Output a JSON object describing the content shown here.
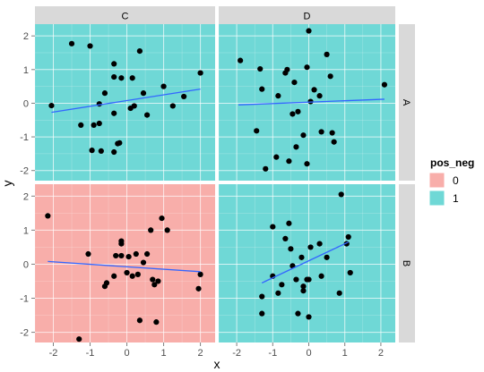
{
  "chart_data": {
    "type": "scatter",
    "xlabel": "x",
    "ylabel": "y",
    "xlim": [
      -2.5,
      2.4
    ],
    "ylim": [
      -2.3,
      2.35
    ],
    "x_ticks": [
      -2,
      -1,
      0,
      1,
      2
    ],
    "y_ticks": [
      -2,
      -1,
      0,
      1,
      2
    ],
    "x_tick_labels": [
      "-2",
      "-1",
      "0",
      "1",
      "2"
    ],
    "y_tick_labels": [
      "-2",
      "-1",
      "0",
      "1",
      "2"
    ],
    "column_facets": [
      "C",
      "D"
    ],
    "row_facets": [
      "A",
      "B"
    ],
    "grid": true,
    "legend": {
      "title": "pos_neg",
      "position": "right",
      "entries": [
        {
          "label": "0",
          "color": "#F8AEAA"
        },
        {
          "label": "1",
          "color": "#6FD8D6"
        }
      ]
    },
    "line_color": "#3366FF",
    "point_color": "#000000",
    "panels": [
      {
        "row": "A",
        "col": "C",
        "pos_neg": "1",
        "points": [
          [
            -2.05,
            -0.07
          ],
          [
            -1.5,
            1.77
          ],
          [
            -1.25,
            -0.65
          ],
          [
            -1.0,
            1.7
          ],
          [
            -0.9,
            -0.65
          ],
          [
            -0.75,
            -0.6
          ],
          [
            -0.95,
            -1.4
          ],
          [
            -0.75,
            -0.02
          ],
          [
            -0.6,
            0.3
          ],
          [
            -0.7,
            -1.42
          ],
          [
            -0.35,
            -1.45
          ],
          [
            -0.25,
            -1.2
          ],
          [
            -0.2,
            -1.18
          ],
          [
            -0.35,
            1.17
          ],
          [
            -0.35,
            0.78
          ],
          [
            -0.35,
            -0.3
          ],
          [
            -0.15,
            0.75
          ],
          [
            0.15,
            0.75
          ],
          [
            0.1,
            -0.15
          ],
          [
            0.2,
            -0.08
          ],
          [
            0.35,
            1.55
          ],
          [
            0.45,
            0.3
          ],
          [
            0.55,
            -0.35
          ],
          [
            1.0,
            0.5
          ],
          [
            1.25,
            -0.08
          ],
          [
            1.55,
            0.2
          ],
          [
            2.0,
            0.9
          ]
        ],
        "fit": [
          [
            -2.05,
            -0.27
          ],
          [
            2.0,
            0.42
          ]
        ]
      },
      {
        "row": "A",
        "col": "D",
        "pos_neg": "1",
        "points": [
          [
            -1.9,
            1.27
          ],
          [
            -1.45,
            -0.82
          ],
          [
            -1.35,
            1.02
          ],
          [
            -1.3,
            0.42
          ],
          [
            -1.2,
            -1.95
          ],
          [
            -0.9,
            -1.6
          ],
          [
            -0.85,
            0.22
          ],
          [
            -0.65,
            0.9
          ],
          [
            -0.6,
            1.0
          ],
          [
            -0.55,
            -1.72
          ],
          [
            -0.45,
            -0.32
          ],
          [
            -0.4,
            0.62
          ],
          [
            -0.35,
            -1.3
          ],
          [
            -0.3,
            -0.25
          ],
          [
            -0.15,
            -0.95
          ],
          [
            0.0,
            2.15
          ],
          [
            -0.05,
            1.07
          ],
          [
            0.05,
            0.05
          ],
          [
            0.15,
            0.4
          ],
          [
            0.3,
            0.22
          ],
          [
            0.35,
            -0.85
          ],
          [
            0.5,
            1.45
          ],
          [
            0.6,
            0.8
          ],
          [
            0.65,
            -0.88
          ],
          [
            0.7,
            -1.15
          ],
          [
            -0.05,
            -1.8
          ],
          [
            2.1,
            0.55
          ]
        ],
        "fit": [
          [
            -1.95,
            -0.05
          ],
          [
            2.1,
            0.12
          ]
        ]
      },
      {
        "row": "B",
        "col": "C",
        "pos_neg": "0",
        "points": [
          [
            -2.15,
            1.42
          ],
          [
            -1.3,
            -2.2
          ],
          [
            -1.05,
            0.3
          ],
          [
            -0.6,
            -0.65
          ],
          [
            -0.55,
            -0.55
          ],
          [
            -0.35,
            -0.35
          ],
          [
            -0.3,
            0.25
          ],
          [
            -0.15,
            0.68
          ],
          [
            -0.15,
            0.6
          ],
          [
            -0.15,
            0.25
          ],
          [
            0.0,
            -0.25
          ],
          [
            0.05,
            0.22
          ],
          [
            0.15,
            -0.35
          ],
          [
            0.25,
            0.3
          ],
          [
            0.35,
            -1.65
          ],
          [
            0.45,
            0.05
          ],
          [
            0.55,
            0.3
          ],
          [
            0.65,
            1.0
          ],
          [
            0.7,
            -0.45
          ],
          [
            0.75,
            -0.6
          ],
          [
            0.8,
            -1.7
          ],
          [
            0.85,
            -0.5
          ],
          [
            0.95,
            1.35
          ],
          [
            1.1,
            1.0
          ],
          [
            1.95,
            -0.72
          ],
          [
            2.0,
            -0.3
          ],
          [
            0.3,
            -0.3
          ]
        ],
        "fit": [
          [
            -2.15,
            0.08
          ],
          [
            2.0,
            -0.22
          ]
        ]
      },
      {
        "row": "B",
        "col": "D",
        "pos_neg": "1",
        "points": [
          [
            -1.3,
            -1.45
          ],
          [
            -1.3,
            -0.95
          ],
          [
            -1.0,
            -0.35
          ],
          [
            -1.0,
            1.1
          ],
          [
            -0.85,
            -0.85
          ],
          [
            -0.75,
            -0.6
          ],
          [
            -0.65,
            0.75
          ],
          [
            -0.55,
            1.2
          ],
          [
            -0.5,
            0.45
          ],
          [
            -0.45,
            -0.05
          ],
          [
            -0.35,
            -0.45
          ],
          [
            -0.3,
            -1.45
          ],
          [
            -0.2,
            0.2
          ],
          [
            -0.15,
            -0.65
          ],
          [
            -0.15,
            -0.78
          ],
          [
            -0.05,
            -0.45
          ],
          [
            0.0,
            -1.55
          ],
          [
            0.0,
            -0.45
          ],
          [
            0.05,
            0.5
          ],
          [
            0.3,
            0.6
          ],
          [
            0.35,
            -0.35
          ],
          [
            0.5,
            0.2
          ],
          [
            0.85,
            -0.85
          ],
          [
            0.9,
            2.05
          ],
          [
            1.05,
            0.6
          ],
          [
            1.1,
            0.8
          ],
          [
            1.15,
            -0.25
          ]
        ],
        "fit": [
          [
            -1.3,
            -0.55
          ],
          [
            1.1,
            0.65
          ]
        ]
      }
    ]
  }
}
